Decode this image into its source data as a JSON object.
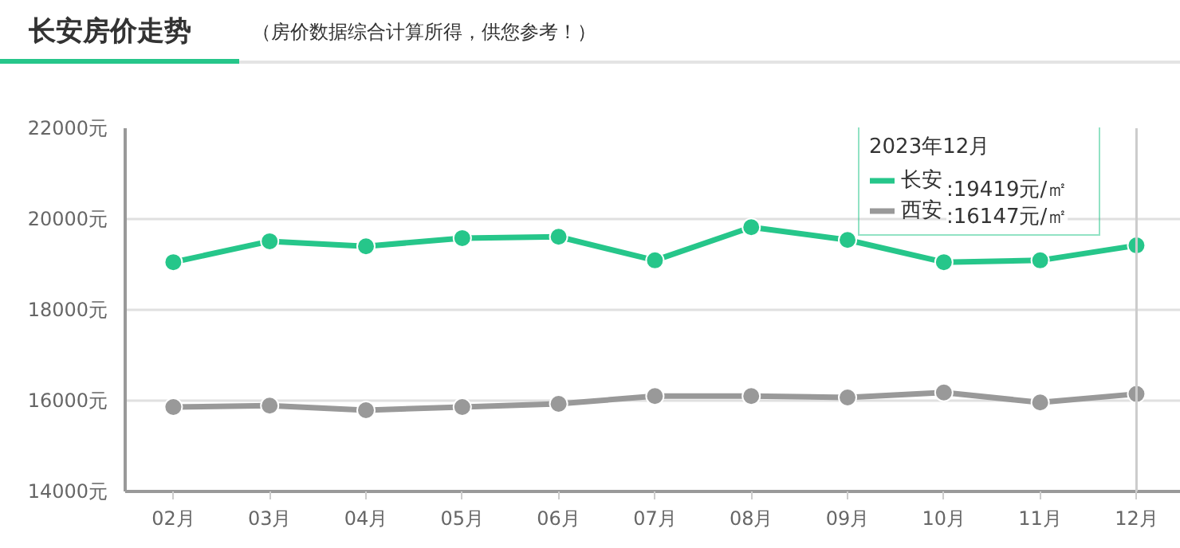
{
  "chart_data": {
    "type": "line",
    "title": "长安房价走势",
    "subtitle": "（房价数据综合计算所得，供您参考！）",
    "categories": [
      "02月",
      "03月",
      "04月",
      "05月",
      "06月",
      "07月",
      "08月",
      "09月",
      "10月",
      "11月",
      "12月"
    ],
    "series": [
      {
        "name": "长安",
        "color": "#26c68a",
        "values": [
          19050,
          19510,
          19400,
          19580,
          19610,
          19090,
          19820,
          19540,
          19050,
          19090,
          19419
        ]
      },
      {
        "name": "西安",
        "color": "#999999",
        "values": [
          15860,
          15890,
          15790,
          15860,
          15930,
          16100,
          16100,
          16070,
          16180,
          15960,
          16147
        ]
      }
    ],
    "ylim": [
      14000,
      22000
    ],
    "yticks": [
      {
        "value": 14000,
        "label": "14000元"
      },
      {
        "value": 16000,
        "label": "16000元"
      },
      {
        "value": 18000,
        "label": "18000元"
      },
      {
        "value": 20000,
        "label": "20000元"
      },
      {
        "value": 22000,
        "label": "22000元"
      }
    ],
    "ref_lines": [
      {
        "axis": "x",
        "value": "12月",
        "color": "#cccccc"
      }
    ],
    "legend_title": "2023年12月",
    "annotations": [
      ":19419元/㎡",
      ":16147元/㎡"
    ],
    "legend": "top right",
    "grid": "y",
    "marker": "circle",
    "line_style": "solid"
  }
}
